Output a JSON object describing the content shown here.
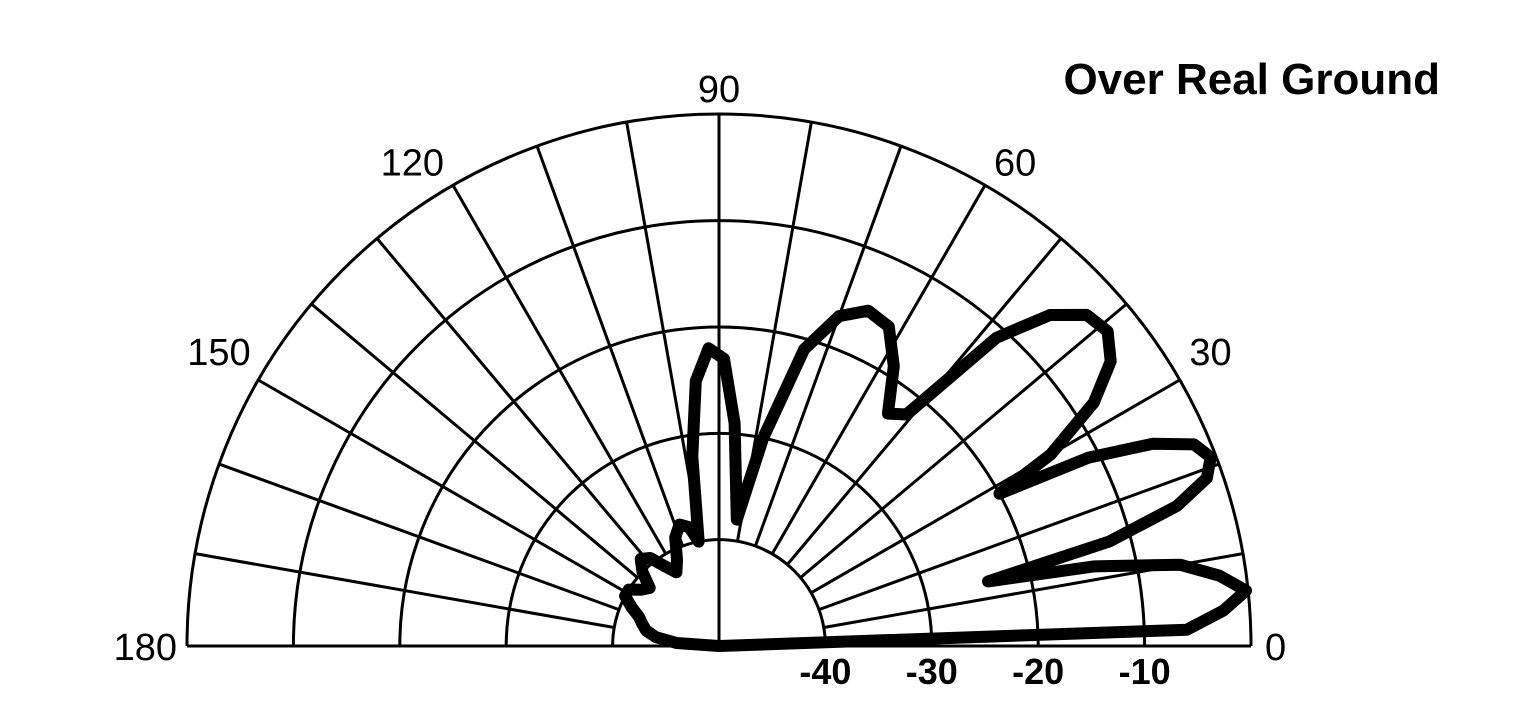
{
  "chart_data": {
    "type": "polar",
    "title": "Over Real Ground",
    "angle_range": [
      0,
      180
    ],
    "angle_ticks": [
      0,
      30,
      60,
      90,
      120,
      150,
      180
    ],
    "angle_tick_labels": [
      "0",
      "30",
      "60",
      "90",
      "120",
      "150",
      "180"
    ],
    "spoke_step_deg": 10,
    "radial_unit": "dB",
    "radial_range": [
      -50,
      0
    ],
    "radial_rings": [
      -40,
      -30,
      -20,
      -10,
      0
    ],
    "radial_tick_labels": [
      "-40",
      "-30",
      "-20",
      "-10"
    ],
    "series": [
      {
        "points": [
          [
            0,
            -50
          ],
          [
            2,
            -6
          ],
          [
            4,
            -2.5
          ],
          [
            6,
            -0.2
          ],
          [
            8,
            -2.5
          ],
          [
            10,
            -6
          ],
          [
            12,
            -14
          ],
          [
            13.5,
            -24
          ],
          [
            15,
            -12
          ],
          [
            17,
            -5
          ],
          [
            19,
            -1.5
          ],
          [
            21,
            -0.5
          ],
          [
            23,
            -1.5
          ],
          [
            25,
            -5
          ],
          [
            27,
            -11
          ],
          [
            28.5,
            -20
          ],
          [
            30,
            -14
          ],
          [
            33,
            -8
          ],
          [
            36,
            -4.5
          ],
          [
            39,
            -3
          ],
          [
            42,
            -3.5
          ],
          [
            45,
            -6
          ],
          [
            48,
            -11
          ],
          [
            51,
            -22
          ],
          [
            54,
            -23
          ],
          [
            58,
            -19
          ],
          [
            62,
            -16
          ],
          [
            66,
            -15.5
          ],
          [
            70,
            -17
          ],
          [
            74,
            -21
          ],
          [
            78,
            -30
          ],
          [
            82,
            -38
          ],
          [
            86,
            -29
          ],
          [
            89,
            -23
          ],
          [
            92,
            -22
          ],
          [
            95,
            -25
          ],
          [
            98,
            -32
          ],
          [
            101,
            -40
          ],
          [
            104,
            -38.5
          ],
          [
            108,
            -38
          ],
          [
            112,
            -39
          ],
          [
            116,
            -41
          ],
          [
            120,
            -42
          ],
          [
            124,
            -41
          ],
          [
            128,
            -39.5
          ],
          [
            132,
            -39
          ],
          [
            136,
            -40
          ],
          [
            140,
            -41.5
          ],
          [
            144,
            -41
          ],
          [
            148,
            -40
          ],
          [
            152,
            -40
          ],
          [
            156,
            -41
          ],
          [
            160,
            -42
          ],
          [
            164,
            -42.5
          ],
          [
            168,
            -43
          ],
          [
            172,
            -44
          ],
          [
            176,
            -46
          ],
          [
            180,
            -50
          ]
        ]
      }
    ]
  }
}
